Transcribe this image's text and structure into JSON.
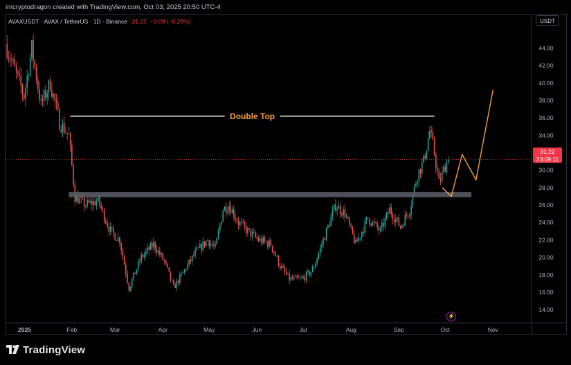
{
  "header": {
    "attribution": "imcryptodragon created with TradingView.com, Oct 03, 2025 20:50 UTC-4"
  },
  "symbol_bar": {
    "label": "AVAXUSDT · AVAX / TetherUS · 1D · Binance",
    "price": "31.22",
    "change": "−0.09 (−0.29%)"
  },
  "currency_button": "USDT",
  "price_badge": {
    "price": "31.22",
    "countdown": "23:09:11"
  },
  "brand": "TradingView",
  "colors": {
    "up": "#26a69a",
    "down": "#ef5350",
    "annotation": "#f5a142",
    "support_zone": "#5d606b",
    "background": "#000000"
  },
  "chart_data": {
    "type": "candlestick",
    "title": "",
    "xlabel": "",
    "ylabel": "",
    "ylim": [
      12.5,
      46.5
    ],
    "y_ticks": [
      "14.00",
      "16.00",
      "18.00",
      "20.00",
      "22.00",
      "24.00",
      "26.00",
      "28.00",
      "30.00",
      "32.00",
      "34.00",
      "36.00",
      "38.00",
      "40.00",
      "42.00",
      "44.00"
    ],
    "x_ticks": [
      {
        "label": "2025",
        "date": "2025-01-01"
      },
      {
        "label": "Feb",
        "date": "2025-02-01"
      },
      {
        "label": "Mar",
        "date": "2025-03-01"
      },
      {
        "label": "Apr",
        "date": "2025-04-01"
      },
      {
        "label": "May",
        "date": "2025-05-01"
      },
      {
        "label": "Jun",
        "date": "2025-06-01"
      },
      {
        "label": "Jul",
        "date": "2025-07-01"
      },
      {
        "label": "Aug",
        "date": "2025-08-01"
      },
      {
        "label": "Sep",
        "date": "2025-09-01"
      },
      {
        "label": "Oct",
        "date": "2025-10-01"
      },
      {
        "label": "Nov",
        "date": "2025-11-01"
      }
    ],
    "x_range": [
      "2024-12-20",
      "2025-11-26"
    ],
    "price_path": [
      [
        "2024-12-20",
        44.5
      ],
      [
        "2025-01-01",
        38.5
      ],
      [
        "2025-01-06",
        44.0
      ],
      [
        "2025-01-12",
        37.5
      ],
      [
        "2025-01-18",
        40.0
      ],
      [
        "2025-01-24",
        35.5
      ],
      [
        "2025-01-30",
        34.0
      ],
      [
        "2025-02-03",
        27.0
      ],
      [
        "2025-02-10",
        26.0
      ],
      [
        "2025-02-18",
        26.5
      ],
      [
        "2025-02-26",
        23.0
      ],
      [
        "2025-03-04",
        22.0
      ],
      [
        "2025-03-10",
        16.5
      ],
      [
        "2025-03-18",
        20.0
      ],
      [
        "2025-03-26",
        21.5
      ],
      [
        "2025-04-02",
        19.5
      ],
      [
        "2025-04-08",
        16.5
      ],
      [
        "2025-04-15",
        18.5
      ],
      [
        "2025-04-22",
        20.5
      ],
      [
        "2025-04-30",
        22.0
      ],
      [
        "2025-05-05",
        21.0
      ],
      [
        "2025-05-10",
        25.5
      ],
      [
        "2025-05-14",
        26.0
      ],
      [
        "2025-05-20",
        24.0
      ],
      [
        "2025-05-26",
        23.0
      ],
      [
        "2025-06-02",
        22.0
      ],
      [
        "2025-06-10",
        21.5
      ],
      [
        "2025-06-16",
        19.0
      ],
      [
        "2025-06-22",
        17.5
      ],
      [
        "2025-06-30",
        17.5
      ],
      [
        "2025-07-07",
        18.5
      ],
      [
        "2025-07-14",
        22.0
      ],
      [
        "2025-07-22",
        26.0
      ],
      [
        "2025-07-28",
        25.0
      ],
      [
        "2025-08-04",
        21.5
      ],
      [
        "2025-08-12",
        24.5
      ],
      [
        "2025-08-20",
        23.0
      ],
      [
        "2025-08-26",
        25.5
      ],
      [
        "2025-09-02",
        23.5
      ],
      [
        "2025-09-08",
        25.5
      ],
      [
        "2025-09-13",
        29.5
      ],
      [
        "2025-09-17",
        31.0
      ],
      [
        "2025-09-21",
        34.5
      ],
      [
        "2025-09-24",
        32.0
      ],
      [
        "2025-09-27",
        28.5
      ],
      [
        "2025-10-01",
        30.5
      ],
      [
        "2025-10-03",
        31.2
      ]
    ],
    "last_price": 31.22,
    "annotations": {
      "double_top": {
        "label": "Double Top",
        "price": 36.2,
        "from": "2025-01-31",
        "to": "2025-09-24"
      },
      "support_zone": {
        "low": 26.9,
        "high": 27.5,
        "from": "2025-01-30",
        "to": "2025-10-18"
      },
      "projection": [
        [
          "2025-09-29",
          28.0
        ],
        [
          "2025-10-05",
          27.0
        ],
        [
          "2025-10-12",
          31.8
        ],
        [
          "2025-10-21",
          28.9
        ],
        [
          "2025-11-01",
          39.2
        ]
      ]
    }
  }
}
